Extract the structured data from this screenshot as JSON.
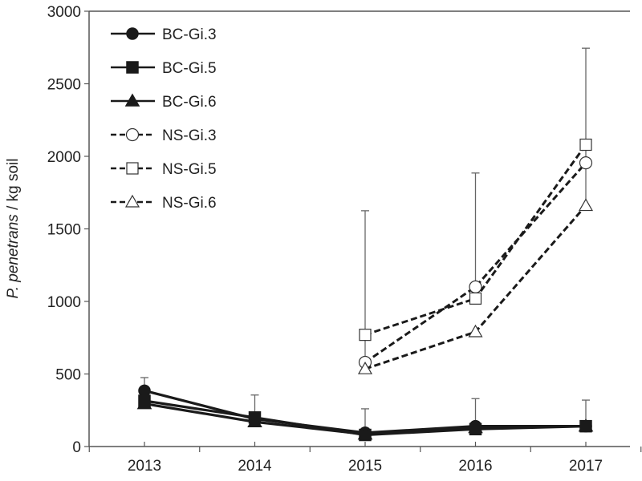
{
  "chart_data": {
    "type": "line",
    "title": "",
    "xlabel": "",
    "ylabel_italic": "P. penetrans",
    "ylabel_rest": " / kg soil",
    "x": [
      2013,
      2014,
      2015,
      2016,
      2017
    ],
    "x_tick_labels": [
      "2013",
      "2014",
      "2015",
      "2016",
      "2017"
    ],
    "ylim": [
      0,
      3000
    ],
    "y_ticks": [
      0,
      500,
      1000,
      1500,
      2000,
      2500,
      3000
    ],
    "y_tick_labels": [
      "0",
      "500",
      "1000",
      "1500",
      "2000",
      "2500",
      "3000"
    ],
    "grid": false,
    "legend_position": "top-left",
    "series": [
      {
        "name": "BC-Gi.3",
        "marker": "circle",
        "filled": true,
        "dashed": false,
        "x": [
          2013,
          2014,
          2015,
          2016,
          2017
        ],
        "values": [
          385,
          190,
          95,
          140,
          140
        ]
      },
      {
        "name": "BC-Gi.5",
        "marker": "square",
        "filled": true,
        "dashed": false,
        "x": [
          2013,
          2014,
          2015,
          2016,
          2017
        ],
        "values": [
          315,
          200,
          80,
          120,
          140
        ]
      },
      {
        "name": "BC-Gi.6",
        "marker": "triangle",
        "filled": true,
        "dashed": false,
        "x": [
          2013,
          2014,
          2015,
          2016,
          2017
        ],
        "values": [
          295,
          170,
          85,
          130,
          140
        ]
      },
      {
        "name": "NS-Gi.3",
        "marker": "circle",
        "filled": false,
        "dashed": true,
        "x": [
          2015,
          2016,
          2017
        ],
        "values": [
          580,
          1100,
          1955
        ]
      },
      {
        "name": "NS-Gi.5",
        "marker": "square",
        "filled": false,
        "dashed": true,
        "x": [
          2015,
          2016,
          2017
        ],
        "values": [
          770,
          1020,
          2080
        ]
      },
      {
        "name": "NS-Gi.6",
        "marker": "triangle",
        "filled": false,
        "dashed": true,
        "x": [
          2015,
          2016,
          2017
        ],
        "values": [
          535,
          790,
          1660
        ]
      }
    ],
    "error_bars": [
      {
        "x": 2013,
        "from": 385,
        "to": 475
      },
      {
        "x": 2014,
        "from": 200,
        "to": 355
      },
      {
        "x": 2015,
        "from": 95,
        "to": 260
      },
      {
        "x": 2016,
        "from": 140,
        "to": 330
      },
      {
        "x": 2017,
        "from": 140,
        "to": 320
      },
      {
        "x": 2015,
        "from": 580,
        "to": 1625
      },
      {
        "x": 2016,
        "from": 1020,
        "to": 1885
      },
      {
        "x": 2017,
        "from": 1660,
        "to": 2745
      }
    ],
    "colors": {
      "line": "#1a1a1a",
      "axis": "#555555",
      "errorbar": "#666666"
    }
  }
}
